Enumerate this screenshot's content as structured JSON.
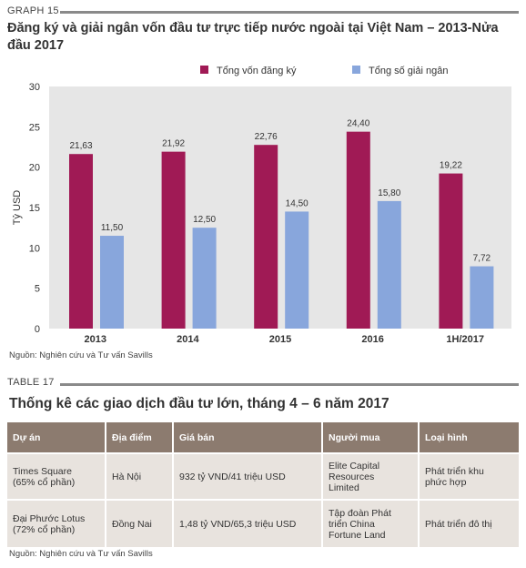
{
  "graph_label": "GRAPH 15",
  "chart_title": "Đăng ký và giải ngân vốn đầu tư trực tiếp nước ngoài tại Việt Nam – 2013-Nửa đầu 2017",
  "chart_source": "Nguồn: Nghiên cứu và Tư vấn Savills",
  "chart_data": {
    "type": "bar",
    "categories": [
      "2013",
      "2014",
      "2015",
      "2016",
      "1H/2017"
    ],
    "series": [
      {
        "name": "Tổng vốn đăng ký",
        "color": "#a01a55",
        "values": [
          21.63,
          21.92,
          22.76,
          24.4,
          19.22
        ],
        "labels": [
          "21,63",
          "21,92",
          "22,76",
          "24,40",
          "19,22"
        ]
      },
      {
        "name": "Tổng số giải ngân",
        "color": "#88a6dc",
        "values": [
          11.5,
          12.5,
          14.5,
          15.8,
          7.72
        ],
        "labels": [
          "11,50",
          "12,50",
          "14,50",
          "15,80",
          "7,72"
        ]
      }
    ],
    "ylabel": "Tỷ USD",
    "ylim": [
      0,
      30
    ],
    "yticks": [
      "0",
      "5",
      "10",
      "15",
      "20",
      "25",
      "30"
    ],
    "grid": false,
    "legend": "top"
  },
  "table_label": "TABLE 17",
  "table_title": "Thống kê các giao dịch đầu tư lớn, tháng 4 – 6 năm 2017",
  "table": {
    "headers": [
      "Dự án",
      "Địa điểm",
      "Giá bán",
      "Người mua",
      "Loại hình"
    ],
    "rows": [
      [
        "Times Square\n(65% cổ phần)",
        "Hà Nội",
        "932 tỷ VND/41 triệu USD",
        "Elite Capital\nResources\nLimited",
        "Phát triển khu\nphức hợp"
      ],
      [
        "Đại Phước Lotus\n(72% cổ phần)",
        "Đồng Nai",
        "1,48 tỷ VND/65,3 triệu USD",
        "Tập đoàn Phát\ntriển China\nFortune Land",
        "Phát triển đô thị"
      ]
    ]
  },
  "table_source": "Nguồn: Nghiên cứu và Tư vấn Savills"
}
